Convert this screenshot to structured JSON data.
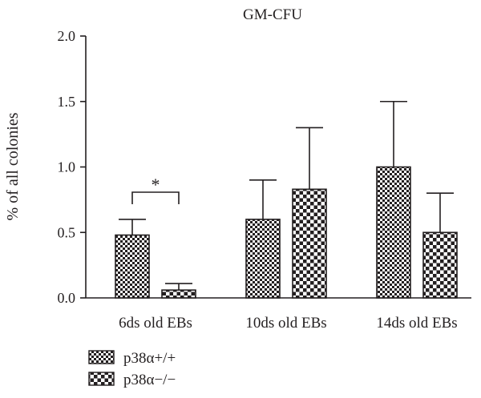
{
  "chart_data": {
    "type": "bar",
    "title": "GM-CFU",
    "xlabel": "",
    "ylabel": "% of all colonies",
    "ylim": [
      0,
      2.0
    ],
    "yticks": [
      "0.0",
      "0.5",
      "1.0",
      "1.5",
      "2.0"
    ],
    "categories": [
      "6ds old EBs",
      "10ds old EBs",
      "14ds old EBs"
    ],
    "series": [
      {
        "name": "p38α+/+",
        "pattern": "fine-checker",
        "values": [
          0.48,
          0.6,
          1.0
        ],
        "errors": [
          0.12,
          0.3,
          0.5
        ]
      },
      {
        "name": "p38α−/−",
        "pattern": "coarse-checker",
        "values": [
          0.06,
          0.83,
          0.5
        ],
        "errors": [
          0.05,
          0.47,
          0.3
        ]
      }
    ],
    "annotations": [
      {
        "text": "*",
        "category": "6ds old EBs",
        "between_series": [
          0,
          1
        ]
      }
    ],
    "grid": false,
    "legend_position": "bottom-left",
    "colors": {
      "ink": "#231f20",
      "background": "#ffffff"
    }
  }
}
